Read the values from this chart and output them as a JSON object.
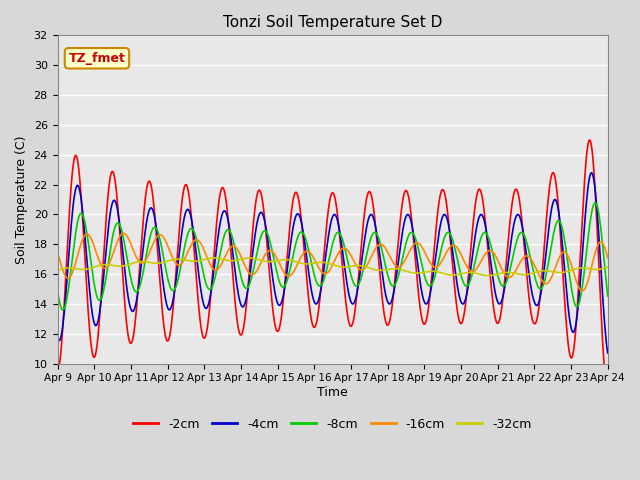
{
  "title": "Tonzi Soil Temperature Set D",
  "ylabel": "Soil Temperature (C)",
  "xlabel": "Time",
  "ylim": [
    10,
    32
  ],
  "annotation": "TZ_fmet",
  "bg_color": "#e8e8e8",
  "plot_bg": "#f0f0f0",
  "grid_color": "white",
  "legend_labels": [
    "-2cm",
    "-4cm",
    "-8cm",
    "-16cm",
    "-32cm"
  ],
  "legend_colors": [
    "#ff0000",
    "#0000cc",
    "#00cc00",
    "#ff8800",
    "#cccc00"
  ],
  "xtick_labels": [
    "Apr 9",
    "Apr 10",
    "Apr 11",
    "Apr 12",
    "Apr 13",
    "Apr 14",
    "Apr 15",
    "Apr 16",
    "Apr 17",
    "Apr 18",
    "Apr 19",
    "Apr 20",
    "Apr 21",
    "Apr 22",
    "Apr 23",
    "Apr 24"
  ],
  "n_days": 15,
  "samples_per_day": 48
}
